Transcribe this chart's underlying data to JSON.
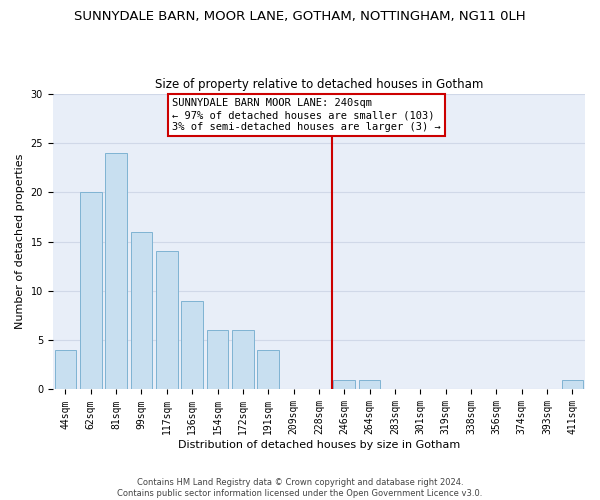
{
  "title": "SUNNYDALE BARN, MOOR LANE, GOTHAM, NOTTINGHAM, NG11 0LH",
  "subtitle": "Size of property relative to detached houses in Gotham",
  "xlabel": "Distribution of detached houses by size in Gotham",
  "ylabel": "Number of detached properties",
  "bar_labels": [
    "44sqm",
    "62sqm",
    "81sqm",
    "99sqm",
    "117sqm",
    "136sqm",
    "154sqm",
    "172sqm",
    "191sqm",
    "209sqm",
    "228sqm",
    "246sqm",
    "264sqm",
    "283sqm",
    "301sqm",
    "319sqm",
    "338sqm",
    "356sqm",
    "374sqm",
    "393sqm",
    "411sqm"
  ],
  "bar_heights": [
    4,
    20,
    24,
    16,
    14,
    9,
    6,
    6,
    4,
    0,
    0,
    1,
    1,
    0,
    0,
    0,
    0,
    0,
    0,
    0,
    1
  ],
  "bar_color": "#c8dff0",
  "bar_edge_color": "#7fb3d3",
  "vline_x": 10.5,
  "vline_color": "#cc0000",
  "annotation_box_text": "SUNNYDALE BARN MOOR LANE: 240sqm\n← 97% of detached houses are smaller (103)\n3% of semi-detached houses are larger (3) →",
  "annotation_box_color": "#cc0000",
  "ylim": [
    0,
    30
  ],
  "yticks": [
    0,
    5,
    10,
    15,
    20,
    25,
    30
  ],
  "grid_color": "#d0d8e8",
  "bg_color": "#e8eef8",
  "footer_line1": "Contains HM Land Registry data © Crown copyright and database right 2024.",
  "footer_line2": "Contains public sector information licensed under the Open Government Licence v3.0.",
  "title_fontsize": 9.5,
  "subtitle_fontsize": 8.5,
  "axis_label_fontsize": 8,
  "tick_fontsize": 7,
  "annotation_fontsize": 7.5,
  "footer_fontsize": 6
}
